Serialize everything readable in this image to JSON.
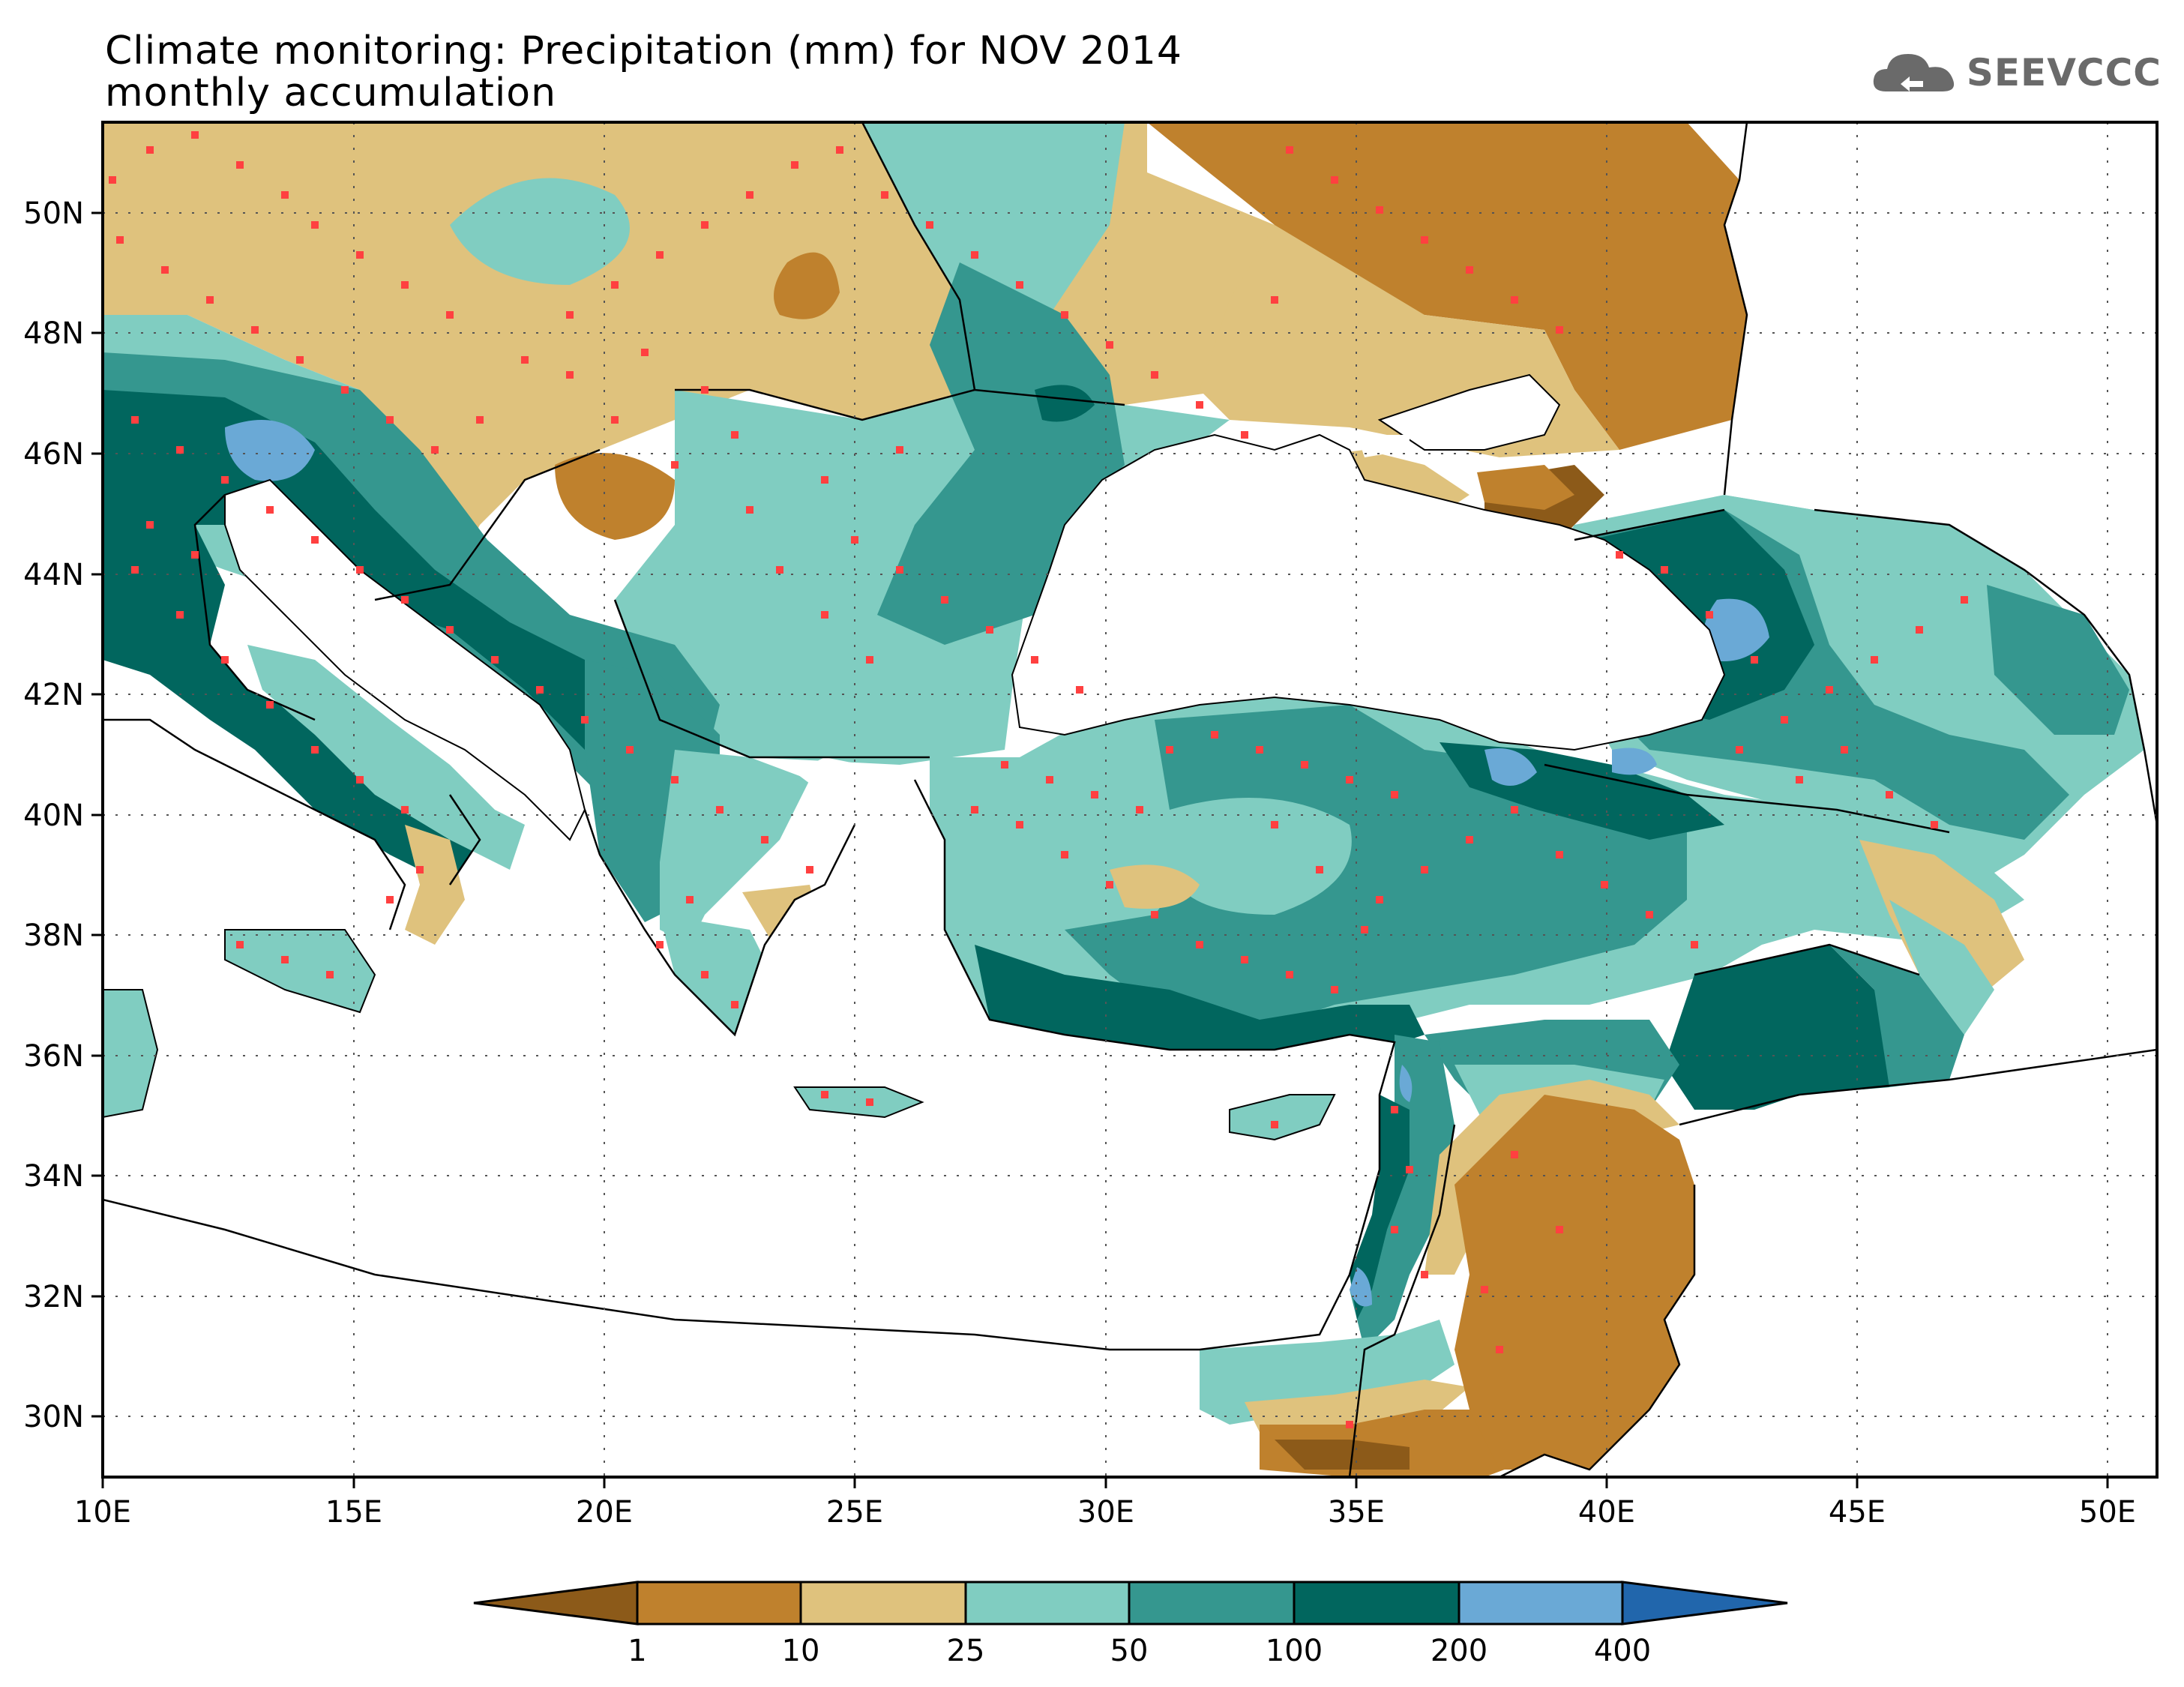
{
  "title_line1": "Climate monitoring: Precipitation (mm) for NOV 2014",
  "title_line2": "monthly accumulation",
  "logo_text": "SEEVCCC",
  "map": {
    "lon_range": [
      10,
      51
    ],
    "lat_range": [
      29,
      51.5
    ],
    "x_ticks": [
      "10E",
      "15E",
      "20E",
      "25E",
      "30E",
      "35E",
      "40E",
      "45E",
      "50E"
    ],
    "y_ticks": [
      "30N",
      "32N",
      "34N",
      "36N",
      "38N",
      "40N",
      "42N",
      "44N",
      "46N",
      "48N",
      "50N"
    ]
  },
  "colorbar": {
    "labels": [
      "1",
      "10",
      "25",
      "50",
      "100",
      "200",
      "400"
    ],
    "colors": {
      "lt1": "#8c5a19",
      "c1_10": "#bf812d",
      "c10_25": "#dfc27d",
      "c25_50": "#80cdc1",
      "c50_100": "#35978f",
      "c100_200": "#01665e",
      "c200_400": "#6aa9d6",
      "gt400": "#2166ac"
    }
  },
  "stations_color": "#ff4040"
}
